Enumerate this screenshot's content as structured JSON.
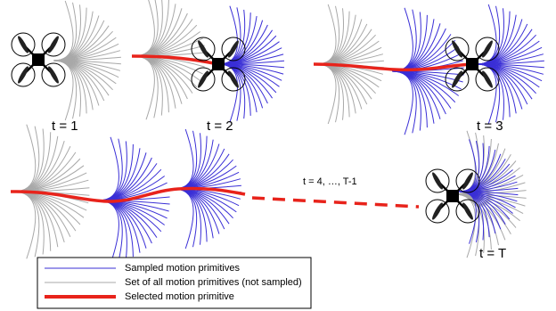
{
  "labels": {
    "t1": "t = 1",
    "t2": "t = 2",
    "t3": "t = 3",
    "t_mid": "t = 4, …, T-1",
    "t_final": "t = T"
  },
  "legend": {
    "sampled": "Sampled motion primitives",
    "all": "Set of all motion primitives (not sampled)",
    "selected": "Selected motion primitive"
  }
}
